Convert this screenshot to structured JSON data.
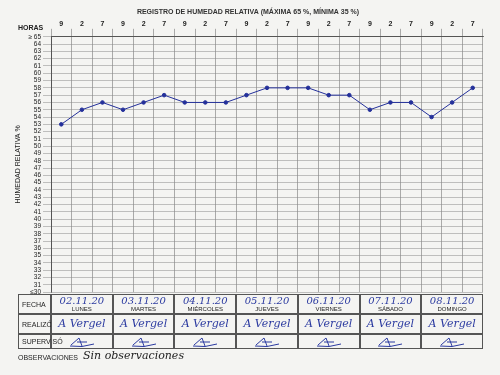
{
  "chart_data": {
    "type": "line",
    "title": "REGISTRO DE HUMEDAD RELATIVA (MÁXIMA 65 %, MÍNIMA 35 %)",
    "x_label": "HORAS",
    "y_label": "HUMEDAD RELATIVA %",
    "categories": [
      "9",
      "2",
      "7",
      "9",
      "2",
      "7",
      "9",
      "2",
      "7",
      "9",
      "2",
      "7",
      "9",
      "2",
      "7",
      "9",
      "2",
      "7",
      "9",
      "2",
      "7"
    ],
    "values": [
      53,
      55,
      56,
      55,
      56,
      57,
      56,
      56,
      56,
      57,
      58,
      58,
      58,
      57,
      57,
      55,
      56,
      56,
      54,
      56,
      58
    ],
    "color": "#24309a",
    "marker": "circle",
    "ylim": [
      30,
      65
    ],
    "yticks": [
      {
        "value": 30,
        "label": "≤30"
      },
      31,
      32,
      33,
      34,
      35,
      36,
      37,
      38,
      39,
      40,
      41,
      42,
      43,
      44,
      45,
      46,
      47,
      48,
      49,
      50,
      51,
      52,
      53,
      54,
      55,
      56,
      57,
      58,
      59,
      60,
      61,
      62,
      63,
      64,
      {
        "value": 65,
        "label": "≥ 65"
      }
    ],
    "grid": true
  },
  "form": {
    "dates": {
      "label": "FECHA",
      "cells": [
        {
          "date": "02.11.20",
          "day": "LUNES"
        },
        {
          "date": "03.11.20",
          "day": "MARTES"
        },
        {
          "date": "04.11.20",
          "day": "MIÉRCOLES"
        },
        {
          "date": "05.11.20",
          "day": "JUEVES"
        },
        {
          "date": "06.11.20",
          "day": "VIERNES"
        },
        {
          "date": "07.11.20",
          "day": "SÁBADO"
        },
        {
          "date": "08.11.20",
          "day": "DOMINGO"
        }
      ]
    },
    "done_by": {
      "label": "REALIZÓ",
      "cells": [
        "A Vergel",
        "A Vergel",
        "A Vergel",
        "A Vergel",
        "A Vergel",
        "A Vergel",
        "A Vergel"
      ]
    },
    "supervised": {
      "label": "SUPERVISÓ"
    },
    "observations": {
      "label": "OBSERVACIONES",
      "text": "Sin observaciones"
    }
  }
}
